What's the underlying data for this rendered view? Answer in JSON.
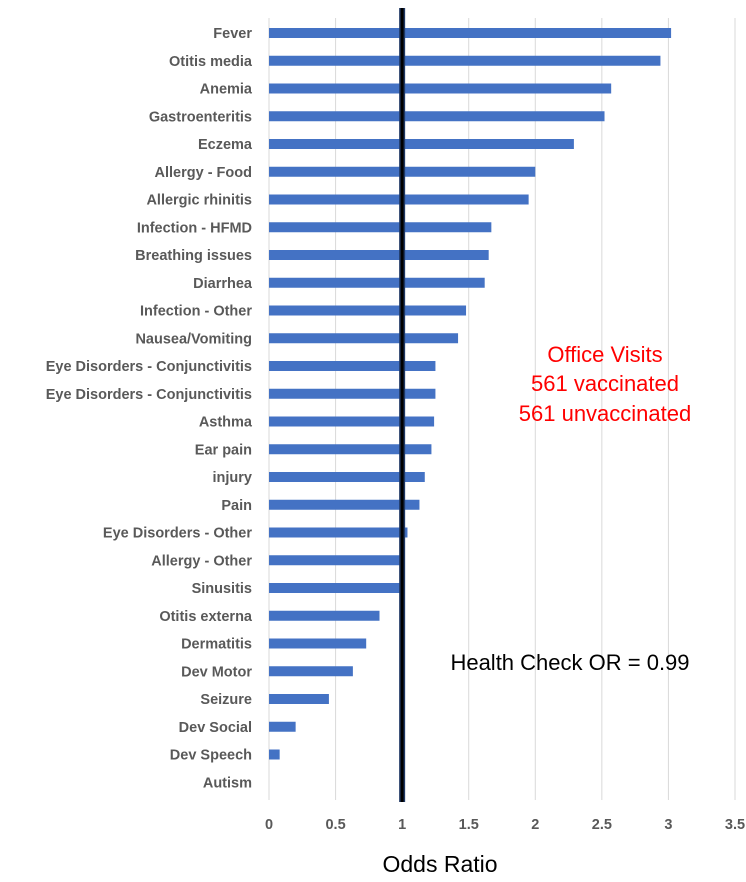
{
  "chart_data": {
    "type": "bar",
    "orientation": "horizontal",
    "title": "",
    "xlabel": "Odds Ratio",
    "ylabel": "",
    "xlim": [
      0,
      3.5
    ],
    "xticks": [
      0,
      0.5,
      1,
      1.5,
      2,
      2.5,
      3,
      3.5
    ],
    "xtick_labels": [
      "0",
      "0.5",
      "1",
      "1.5",
      "2",
      "2.5",
      "3",
      "3.5"
    ],
    "grid": "vertical",
    "reference_line": {
      "x": 1,
      "color": "#000000"
    },
    "bar_color": "#4472c4",
    "categories": [
      "Fever",
      "Otitis media",
      "Anemia",
      "Gastroenteritis",
      "Eczema",
      "Allergy - Food",
      "Allergic rhinitis",
      "Infection - HFMD",
      "Breathing issues",
      "Diarrhea",
      "Infection - Other",
      "Nausea/Vomiting",
      "Eye Disorders - Conjunctivitis",
      "Eye Disorders - Conjunctivitis",
      "Asthma",
      "Ear pain",
      "injury",
      "Pain",
      "Eye Disorders - Other",
      "Allergy - Other",
      "Sinusitis",
      "Otitis externa",
      "Dermatitis",
      "Dev Motor",
      "Seizure",
      "Dev Social",
      "Dev Speech",
      "Autism"
    ],
    "values": [
      3.02,
      2.94,
      2.57,
      2.52,
      2.29,
      2.0,
      1.95,
      1.67,
      1.65,
      1.62,
      1.48,
      1.42,
      1.25,
      1.25,
      1.24,
      1.22,
      1.17,
      1.13,
      1.04,
      1.01,
      1.01,
      0.83,
      0.73,
      0.63,
      0.45,
      0.2,
      0.08,
      0.0
    ],
    "annotations": [
      {
        "name": "office-visits-title",
        "text": "Office Visits",
        "color": "#ff0000"
      },
      {
        "name": "office-visits-vaccinated",
        "text": "561 vaccinated",
        "color": "#ff0000"
      },
      {
        "name": "office-visits-unvaccinated",
        "text": "561 unvaccinated",
        "color": "#ff0000"
      },
      {
        "name": "health-check-or",
        "text": "Health Check OR = 0.99",
        "color": "#000000"
      }
    ]
  }
}
